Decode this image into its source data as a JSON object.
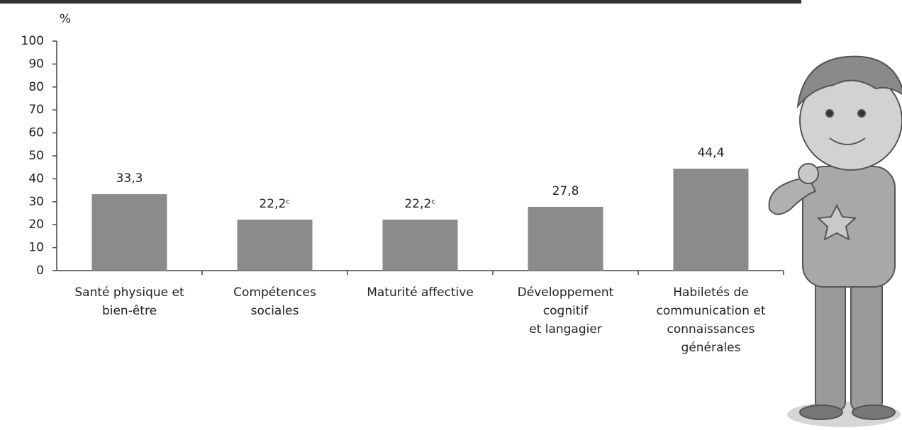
{
  "chart_data": {
    "type": "bar",
    "y_label": "%",
    "categories": [
      "Santé physique et\nbien-être",
      "Compétences\nsociales",
      "Maturité affective",
      "Développement\ncognitif\net langagier",
      "Habiletés de\ncommunication et\nconnaissances\ngénérales"
    ],
    "values": [
      33.3,
      22.2,
      22.2,
      27.8,
      44.4
    ],
    "value_labels": [
      "33,3",
      "22,2ᶜ",
      "22,2ᶜ",
      "27,8",
      "44,4"
    ],
    "color": "#8b8b8b",
    "ylim": [
      0,
      100
    ],
    "yticks": [
      0,
      10,
      20,
      30,
      40,
      50,
      60,
      70,
      80,
      90,
      100
    ]
  }
}
